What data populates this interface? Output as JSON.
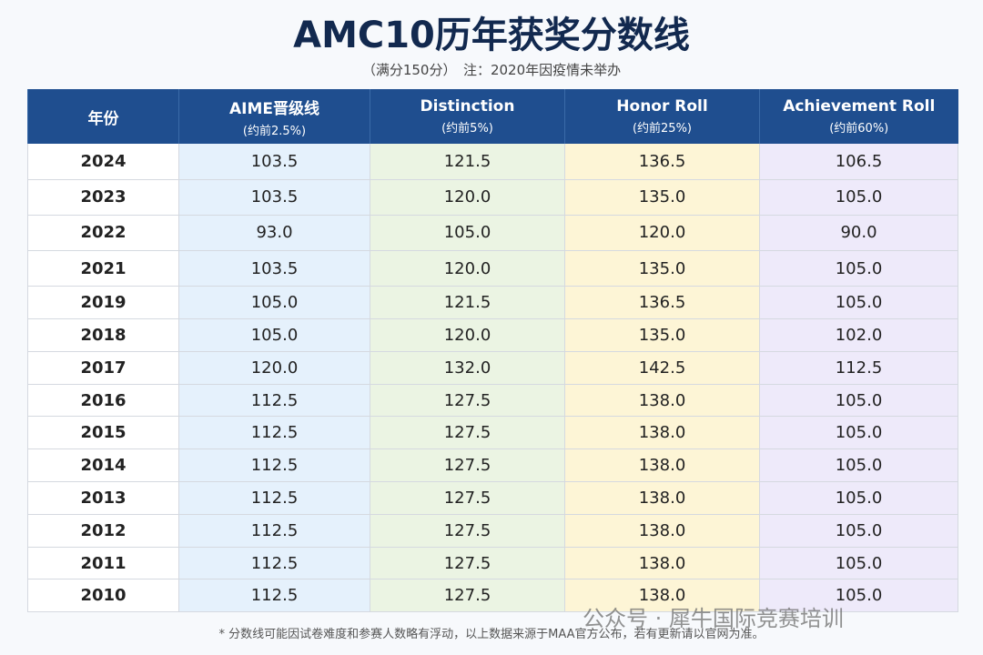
{
  "header": {
    "title": "AMC10历年获奖分数线",
    "subtitle": "（满分150分）　注：2020年因疫情未举办"
  },
  "table": {
    "columns": [
      {
        "name": "年份"
      },
      {
        "name": "AIME晋级线",
        "note": "(约前2.5%)"
      },
      {
        "name": "Distinction",
        "note": "(约前5%)"
      },
      {
        "name": "Honor Roll",
        "note": "(约前25%)"
      },
      {
        "name": "Achievement Roll",
        "note": "(约前60%)"
      }
    ],
    "rows": [
      [
        "2024",
        "103.5",
        "121.5",
        "136.5",
        "106.5"
      ],
      [
        "2023",
        "103.5",
        "120.0",
        "135.0",
        "105.0"
      ],
      [
        "2022",
        "93.0",
        "105.0",
        "120.0",
        "90.0"
      ],
      [
        "2021",
        "103.5",
        "120.0",
        "135.0",
        "105.0"
      ],
      [
        "2019",
        "105.0",
        "121.5",
        "136.5",
        "105.0"
      ],
      [
        "2018",
        "105.0",
        "120.0",
        "135.0",
        "102.0"
      ],
      [
        "2017",
        "120.0",
        "132.0",
        "142.5",
        "112.5"
      ],
      [
        "2016",
        "112.5",
        "127.5",
        "138.0",
        "105.0"
      ],
      [
        "2015",
        "112.5",
        "127.5",
        "138.0",
        "105.0"
      ],
      [
        "2014",
        "112.5",
        "127.5",
        "138.0",
        "105.0"
      ],
      [
        "2013",
        "112.5",
        "127.5",
        "138.0",
        "105.0"
      ],
      [
        "2012",
        "112.5",
        "127.5",
        "138.0",
        "105.0"
      ],
      [
        "2011",
        "112.5",
        "127.5",
        "138.0",
        "105.0"
      ],
      [
        "2010",
        "112.5",
        "127.5",
        "138.0",
        "105.0"
      ]
    ]
  },
  "footnote": "* 分数线可能因试卷难度和参赛人数略有浮动，以上数据来源于MAA官方公布，若有更新请以官网为准。",
  "watermark": "公众号 · 犀牛国际竞赛培训"
}
